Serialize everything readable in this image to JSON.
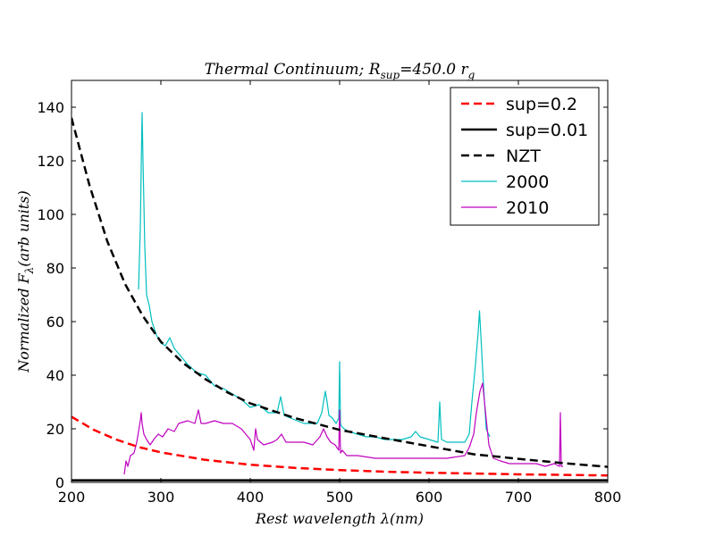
{
  "chart_data": {
    "type": "line",
    "title": "Thermal Continuum; R_sup = 450.0 r_g",
    "title_parts": {
      "main": "Thermal Continuum; R",
      "sub": "sup",
      "rest": "=450.0 r",
      "sub2": "g"
    },
    "xlabel": "Rest wavelength λ(nm)",
    "ylabel": "Normalized F_λ (arb units)",
    "ylabel_parts": {
      "main": "Normalized F",
      "sub": "λ",
      "rest": "(arb units)"
    },
    "xlim": [
      200,
      800
    ],
    "ylim": [
      0,
      150
    ],
    "x_ticks": [
      200,
      300,
      400,
      500,
      600,
      700,
      800
    ],
    "y_ticks": [
      0,
      20,
      40,
      60,
      80,
      100,
      120,
      140
    ],
    "grid": false,
    "legend_position": "top-right",
    "series": [
      {
        "name": "sup=0.2",
        "style": "dashed",
        "color": "#ff0000",
        "x": [
          200,
          225,
          250,
          275,
          300,
          350,
          400,
          450,
          500,
          550,
          600,
          650,
          700,
          750,
          800
        ],
        "y": [
          24.5,
          19.6,
          16.0,
          13.2,
          11.2,
          8.4,
          6.6,
          5.4,
          4.6,
          4.0,
          3.6,
          3.3,
          3.0,
          2.8,
          2.6
        ]
      },
      {
        "name": "sup=0.01",
        "style": "solid",
        "color": "#000000",
        "x": [
          200,
          800
        ],
        "y": [
          0.8,
          0.8
        ]
      },
      {
        "name": "NZT",
        "style": "dashed",
        "color": "#000000",
        "x": [
          200,
          220,
          240,
          260,
          280,
          300,
          325,
          350,
          375,
          400,
          450,
          500,
          550,
          600,
          650,
          700,
          750,
          800
        ],
        "y": [
          136,
          111,
          90,
          74,
          62,
          52.5,
          44.5,
          38.5,
          33.5,
          29.5,
          24,
          19.6,
          16.5,
          13.5,
          10.5,
          8.8,
          7.2,
          5.8
        ]
      },
      {
        "name": "2000",
        "style": "solid",
        "color": "#00bfbf",
        "x": [
          275,
          277,
          278,
          279,
          280,
          282,
          284,
          287,
          290,
          295,
          300,
          305,
          310,
          315,
          320,
          330,
          340,
          350,
          360,
          370,
          380,
          390,
          400,
          410,
          420,
          430,
          434,
          438,
          445,
          460,
          475,
          480,
          484,
          486,
          488,
          492,
          496,
          499,
          500,
          501,
          502,
          505,
          510,
          520,
          530,
          540,
          550,
          560,
          570,
          580,
          585,
          590,
          600,
          610,
          612,
          614,
          620,
          630,
          640,
          645,
          648,
          652,
          655,
          656.5,
          658,
          661,
          664,
          668
        ],
        "y": [
          72,
          95,
          118,
          138,
          120,
          88,
          70,
          66,
          60,
          55,
          52,
          51,
          54,
          50,
          48,
          44,
          41,
          40,
          36,
          35,
          33,
          31,
          28,
          29,
          26,
          26,
          32,
          25,
          24,
          22,
          22,
          26,
          34,
          30,
          25,
          24,
          22,
          24,
          45,
          22,
          21,
          20,
          19,
          18,
          17,
          17,
          16,
          16,
          16,
          17,
          19,
          17,
          16,
          15,
          30,
          16,
          15,
          15,
          15,
          18,
          30,
          44,
          56,
          64,
          55,
          36,
          20,
          17
        ]
      },
      {
        "name": "2010",
        "style": "solid",
        "color": "#bf00bf",
        "x": [
          259,
          261,
          263,
          266,
          270,
          273,
          275,
          277,
          278,
          279,
          281,
          284,
          288,
          292,
          297,
          302,
          308,
          315,
          320,
          330,
          338,
          342,
          345,
          350,
          360,
          370,
          380,
          390,
          400,
          404,
          406,
          408,
          415,
          425,
          430,
          435,
          440,
          450,
          460,
          470,
          478,
          482,
          486,
          490,
          495,
          499,
          500,
          501,
          503,
          508,
          520,
          540,
          560,
          580,
          600,
          620,
          640,
          645,
          650,
          653,
          657,
          660,
          663,
          667,
          672,
          680,
          690,
          700,
          710,
          720,
          730,
          740,
          746,
          747,
          748,
          750
        ],
        "y": [
          3,
          8,
          6,
          10,
          11,
          15,
          19,
          23,
          26,
          22,
          18,
          16,
          14,
          16,
          18,
          17,
          20,
          19,
          22,
          23,
          22,
          27,
          22,
          22,
          23,
          22,
          22,
          20,
          16,
          12,
          20,
          16,
          14,
          15,
          16,
          18,
          15,
          15,
          15,
          14,
          17,
          20,
          17,
          15,
          14,
          12,
          27,
          11,
          12,
          10,
          10,
          9,
          9,
          9,
          9,
          9,
          10,
          13,
          18,
          26,
          34,
          37,
          27,
          14,
          9,
          8,
          7,
          7,
          7,
          7,
          6,
          7,
          6,
          26,
          6,
          6
        ]
      }
    ]
  },
  "legend": {
    "entries": [
      "sup=0.2",
      "sup=0.01",
      "NZT",
      "2000",
      "2010"
    ]
  }
}
